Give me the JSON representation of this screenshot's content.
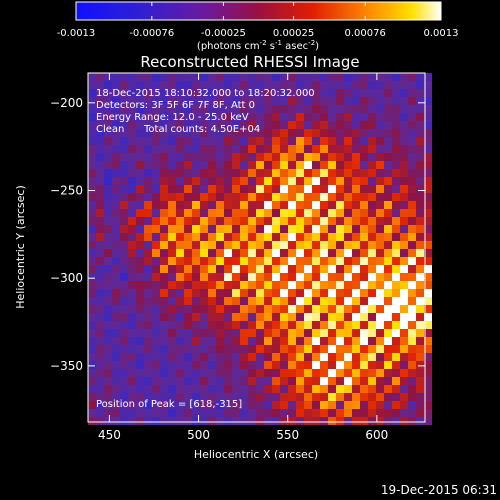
{
  "colorbar": {
    "ticks": [
      "-0.0013",
      "-0.00076",
      "-0.00025",
      "0.00025",
      "0.00076",
      "0.0013"
    ],
    "units_main": "(photons cm",
    "units_exp1": "-2",
    "units_mid1": " s",
    "units_exp2": "-1",
    "units_mid2": " asec",
    "units_exp3": "-2",
    "units_end": ")"
  },
  "chart_data": {
    "type": "heatmap",
    "title": "Reconstructed RHESSI Image",
    "xlabel": "Heliocentric X (arcsec)",
    "ylabel": "Heliocentric Y (arcsec)",
    "xlim": [
      438,
      627
    ],
    "ylim": [
      -382,
      -183
    ],
    "x_ticks": [
      450,
      500,
      550,
      600
    ],
    "y_ticks": [
      -200,
      -250,
      -300,
      -350
    ],
    "color_scale": {
      "min": -0.0013,
      "max": 0.0013,
      "colormap": "rainbow-hot (blue-purple-red-yellow-white)"
    },
    "annotations": [
      "18-Dec-2015 18:10:32.000 to 18:20:32.000",
      "Detectors: 3F 5F 6F 7F 8F, Att 0",
      "Energy Range: 12.0 - 25.0 keV",
      "Clean",
      "Total counts: 4.50E+04"
    ],
    "peak_label": "Position of Peak = [618,-315]",
    "peak": {
      "x": 618,
      "y": -315
    }
  },
  "footer": {
    "timestamp": "19-Dec-2015 06:31"
  }
}
